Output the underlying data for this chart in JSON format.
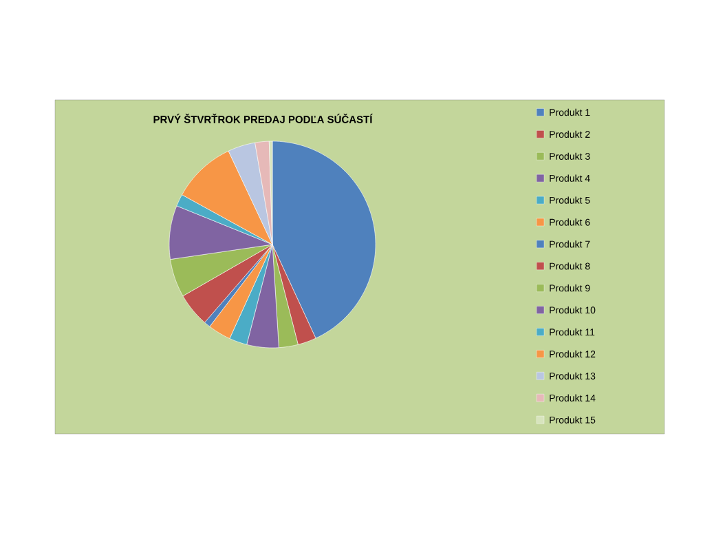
{
  "chart_data": {
    "type": "pie",
    "title": "PRVÝ ŠTVRŤROK PREDAJ PODĽA SÚČASTÍ",
    "categories": [
      "Produkt 1",
      "Produkt 2",
      "Produkt 3",
      "Produkt 4",
      "Produkt 5",
      "Produkt 6",
      "Produkt 7",
      "Produkt 8",
      "Produkt 9",
      "Produkt 10",
      "Produkt 11",
      "Produkt 12",
      "Produkt 13",
      "Produkt 14",
      "Produkt 15"
    ],
    "values": [
      43.1,
      2.9,
      3,
      5,
      2.8,
      3.6,
      1,
      5.3,
      6,
      8.4,
      1.9,
      10,
      4.3,
      2.2,
      0.5
    ],
    "colors": [
      "#4f81bd",
      "#c0504d",
      "#9bbb59",
      "#8064a2",
      "#4bacc6",
      "#f79646",
      "#4f81bd",
      "#c0504d",
      "#9bbb59",
      "#8064a2",
      "#4bacc6",
      "#f79646",
      "#b9c6e1",
      "#e6b9b8",
      "#d7e4bd"
    ],
    "legend": "right"
  }
}
